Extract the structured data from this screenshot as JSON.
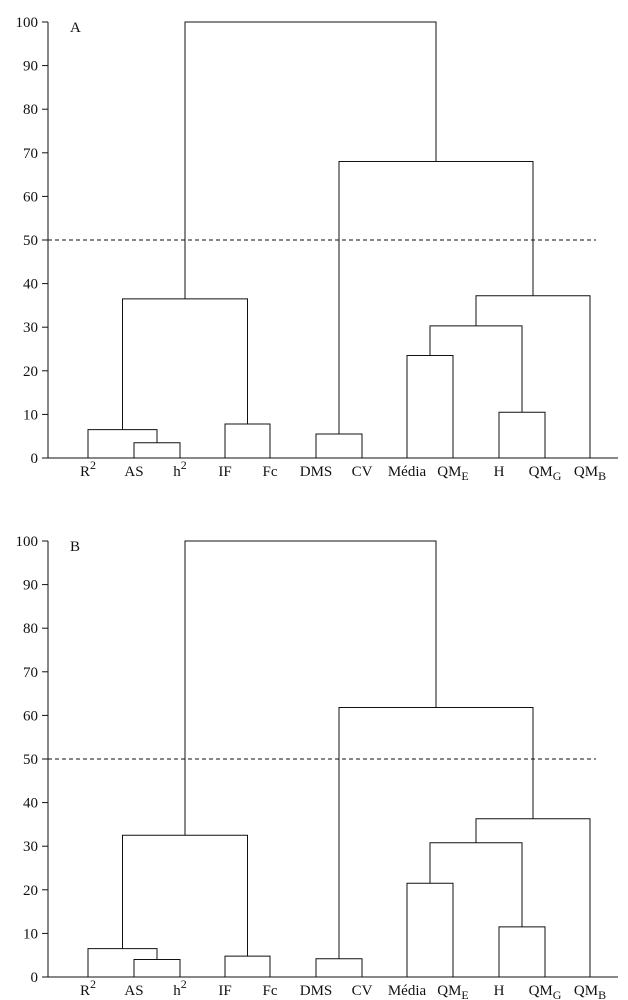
{
  "chart_data": [
    {
      "type": "dendrogram",
      "panel_label": "A",
      "ylim": [
        0,
        100
      ],
      "yticks": [
        0,
        10,
        20,
        30,
        40,
        50,
        60,
        70,
        80,
        90,
        100
      ],
      "cutoff": 50,
      "leaves": [
        {
          "base": "R",
          "sup": "2",
          "sub": ""
        },
        {
          "base": "AS",
          "sup": "",
          "sub": ""
        },
        {
          "base": "h",
          "sup": "2",
          "sub": ""
        },
        {
          "base": "IF",
          "sup": "",
          "sub": ""
        },
        {
          "base": "Fc",
          "sup": "",
          "sub": ""
        },
        {
          "base": "DMS",
          "sup": "",
          "sub": ""
        },
        {
          "base": "CV",
          "sup": "",
          "sub": ""
        },
        {
          "base": "Média",
          "sup": "",
          "sub": ""
        },
        {
          "base": "QM",
          "sup": "",
          "sub": "E"
        },
        {
          "base": "H",
          "sup": "",
          "sub": ""
        },
        {
          "base": "QM",
          "sup": "",
          "sub": "G"
        },
        {
          "base": "QM",
          "sup": "",
          "sub": "B"
        }
      ],
      "merges": [
        {
          "a": "L1",
          "b": "L2",
          "height": 3.5
        },
        {
          "a": "L0",
          "b": "M0",
          "height": 6.5
        },
        {
          "a": "L3",
          "b": "L4",
          "height": 7.8
        },
        {
          "a": "M1",
          "b": "M2",
          "height": 36.5
        },
        {
          "a": "L5",
          "b": "L6",
          "height": 5.5
        },
        {
          "a": "L7",
          "b": "L8",
          "height": 23.5
        },
        {
          "a": "L9",
          "b": "L10",
          "height": 10.5
        },
        {
          "a": "M5",
          "b": "M6",
          "height": 30.3
        },
        {
          "a": "M7",
          "b": "L11",
          "height": 37.2
        },
        {
          "a": "M4",
          "b": "M8",
          "height": 68
        },
        {
          "a": "M3",
          "b": "M9",
          "height": 100
        }
      ]
    },
    {
      "type": "dendrogram",
      "panel_label": "B",
      "ylim": [
        0,
        100
      ],
      "yticks": [
        0,
        10,
        20,
        30,
        40,
        50,
        60,
        70,
        80,
        90,
        100
      ],
      "cutoff": 50,
      "leaves": [
        {
          "base": "R",
          "sup": "2",
          "sub": ""
        },
        {
          "base": "AS",
          "sup": "",
          "sub": ""
        },
        {
          "base": "h",
          "sup": "2",
          "sub": ""
        },
        {
          "base": "IF",
          "sup": "",
          "sub": ""
        },
        {
          "base": "Fc",
          "sup": "",
          "sub": ""
        },
        {
          "base": "DMS",
          "sup": "",
          "sub": ""
        },
        {
          "base": "CV",
          "sup": "",
          "sub": ""
        },
        {
          "base": "Média",
          "sup": "",
          "sub": ""
        },
        {
          "base": "QM",
          "sup": "",
          "sub": "E"
        },
        {
          "base": "H",
          "sup": "",
          "sub": ""
        },
        {
          "base": "QM",
          "sup": "",
          "sub": "G"
        },
        {
          "base": "QM",
          "sup": "",
          "sub": "B"
        }
      ],
      "merges": [
        {
          "a": "L1",
          "b": "L2",
          "height": 4
        },
        {
          "a": "L0",
          "b": "M0",
          "height": 6.5
        },
        {
          "a": "L3",
          "b": "L4",
          "height": 4.8
        },
        {
          "a": "M1",
          "b": "M2",
          "height": 32.5
        },
        {
          "a": "L5",
          "b": "L6",
          "height": 4.2
        },
        {
          "a": "L7",
          "b": "L8",
          "height": 21.5
        },
        {
          "a": "L9",
          "b": "L10",
          "height": 11.5
        },
        {
          "a": "M5",
          "b": "M6",
          "height": 30.8
        },
        {
          "a": "M7",
          "b": "L11",
          "height": 36.3
        },
        {
          "a": "M4",
          "b": "M8",
          "height": 61.8
        },
        {
          "a": "M3",
          "b": "M9",
          "height": 100
        }
      ]
    }
  ]
}
